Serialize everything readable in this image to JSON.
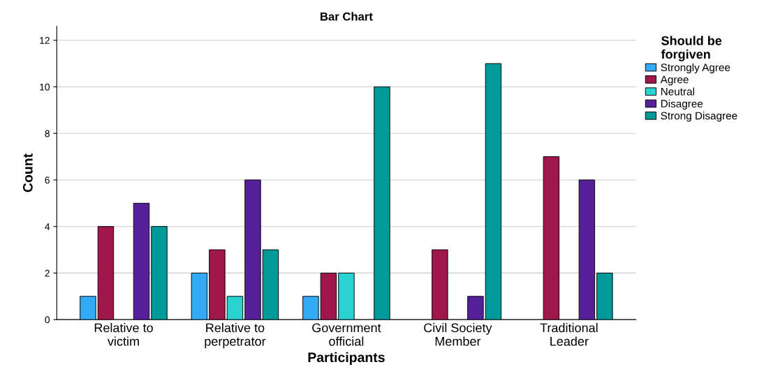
{
  "chart_data": {
    "type": "bar",
    "title": "Bar Chart",
    "xlabel": "Participants",
    "ylabel": "Count",
    "categories": [
      "Relative to\nvictim",
      "Relative to\nperpetrator",
      "Government\nofficial",
      "Civil Society\nMember",
      "Traditional\nLeader"
    ],
    "series": [
      {
        "name": "Strongly Agree",
        "color": "#33aaf5",
        "values": [
          1,
          2,
          1,
          null,
          null
        ]
      },
      {
        "name": "Agree",
        "color": "#a0174c",
        "values": [
          4,
          3,
          2,
          3,
          7
        ]
      },
      {
        "name": "Neutral",
        "color": "#2ad2d2",
        "values": [
          null,
          1,
          2,
          null,
          null
        ]
      },
      {
        "name": "Disagree",
        "color": "#56209a",
        "values": [
          5,
          6,
          null,
          1,
          6
        ]
      },
      {
        "name": "Strong Disagree",
        "color": "#009a9a",
        "values": [
          4,
          3,
          10,
          11,
          2
        ]
      }
    ],
    "legend_title": "Should be\nforgiven",
    "legend": "right",
    "ylim": [
      0,
      12.6
    ],
    "yticks": [
      0,
      2,
      4,
      6,
      8,
      10,
      12
    ],
    "grid": "y"
  }
}
